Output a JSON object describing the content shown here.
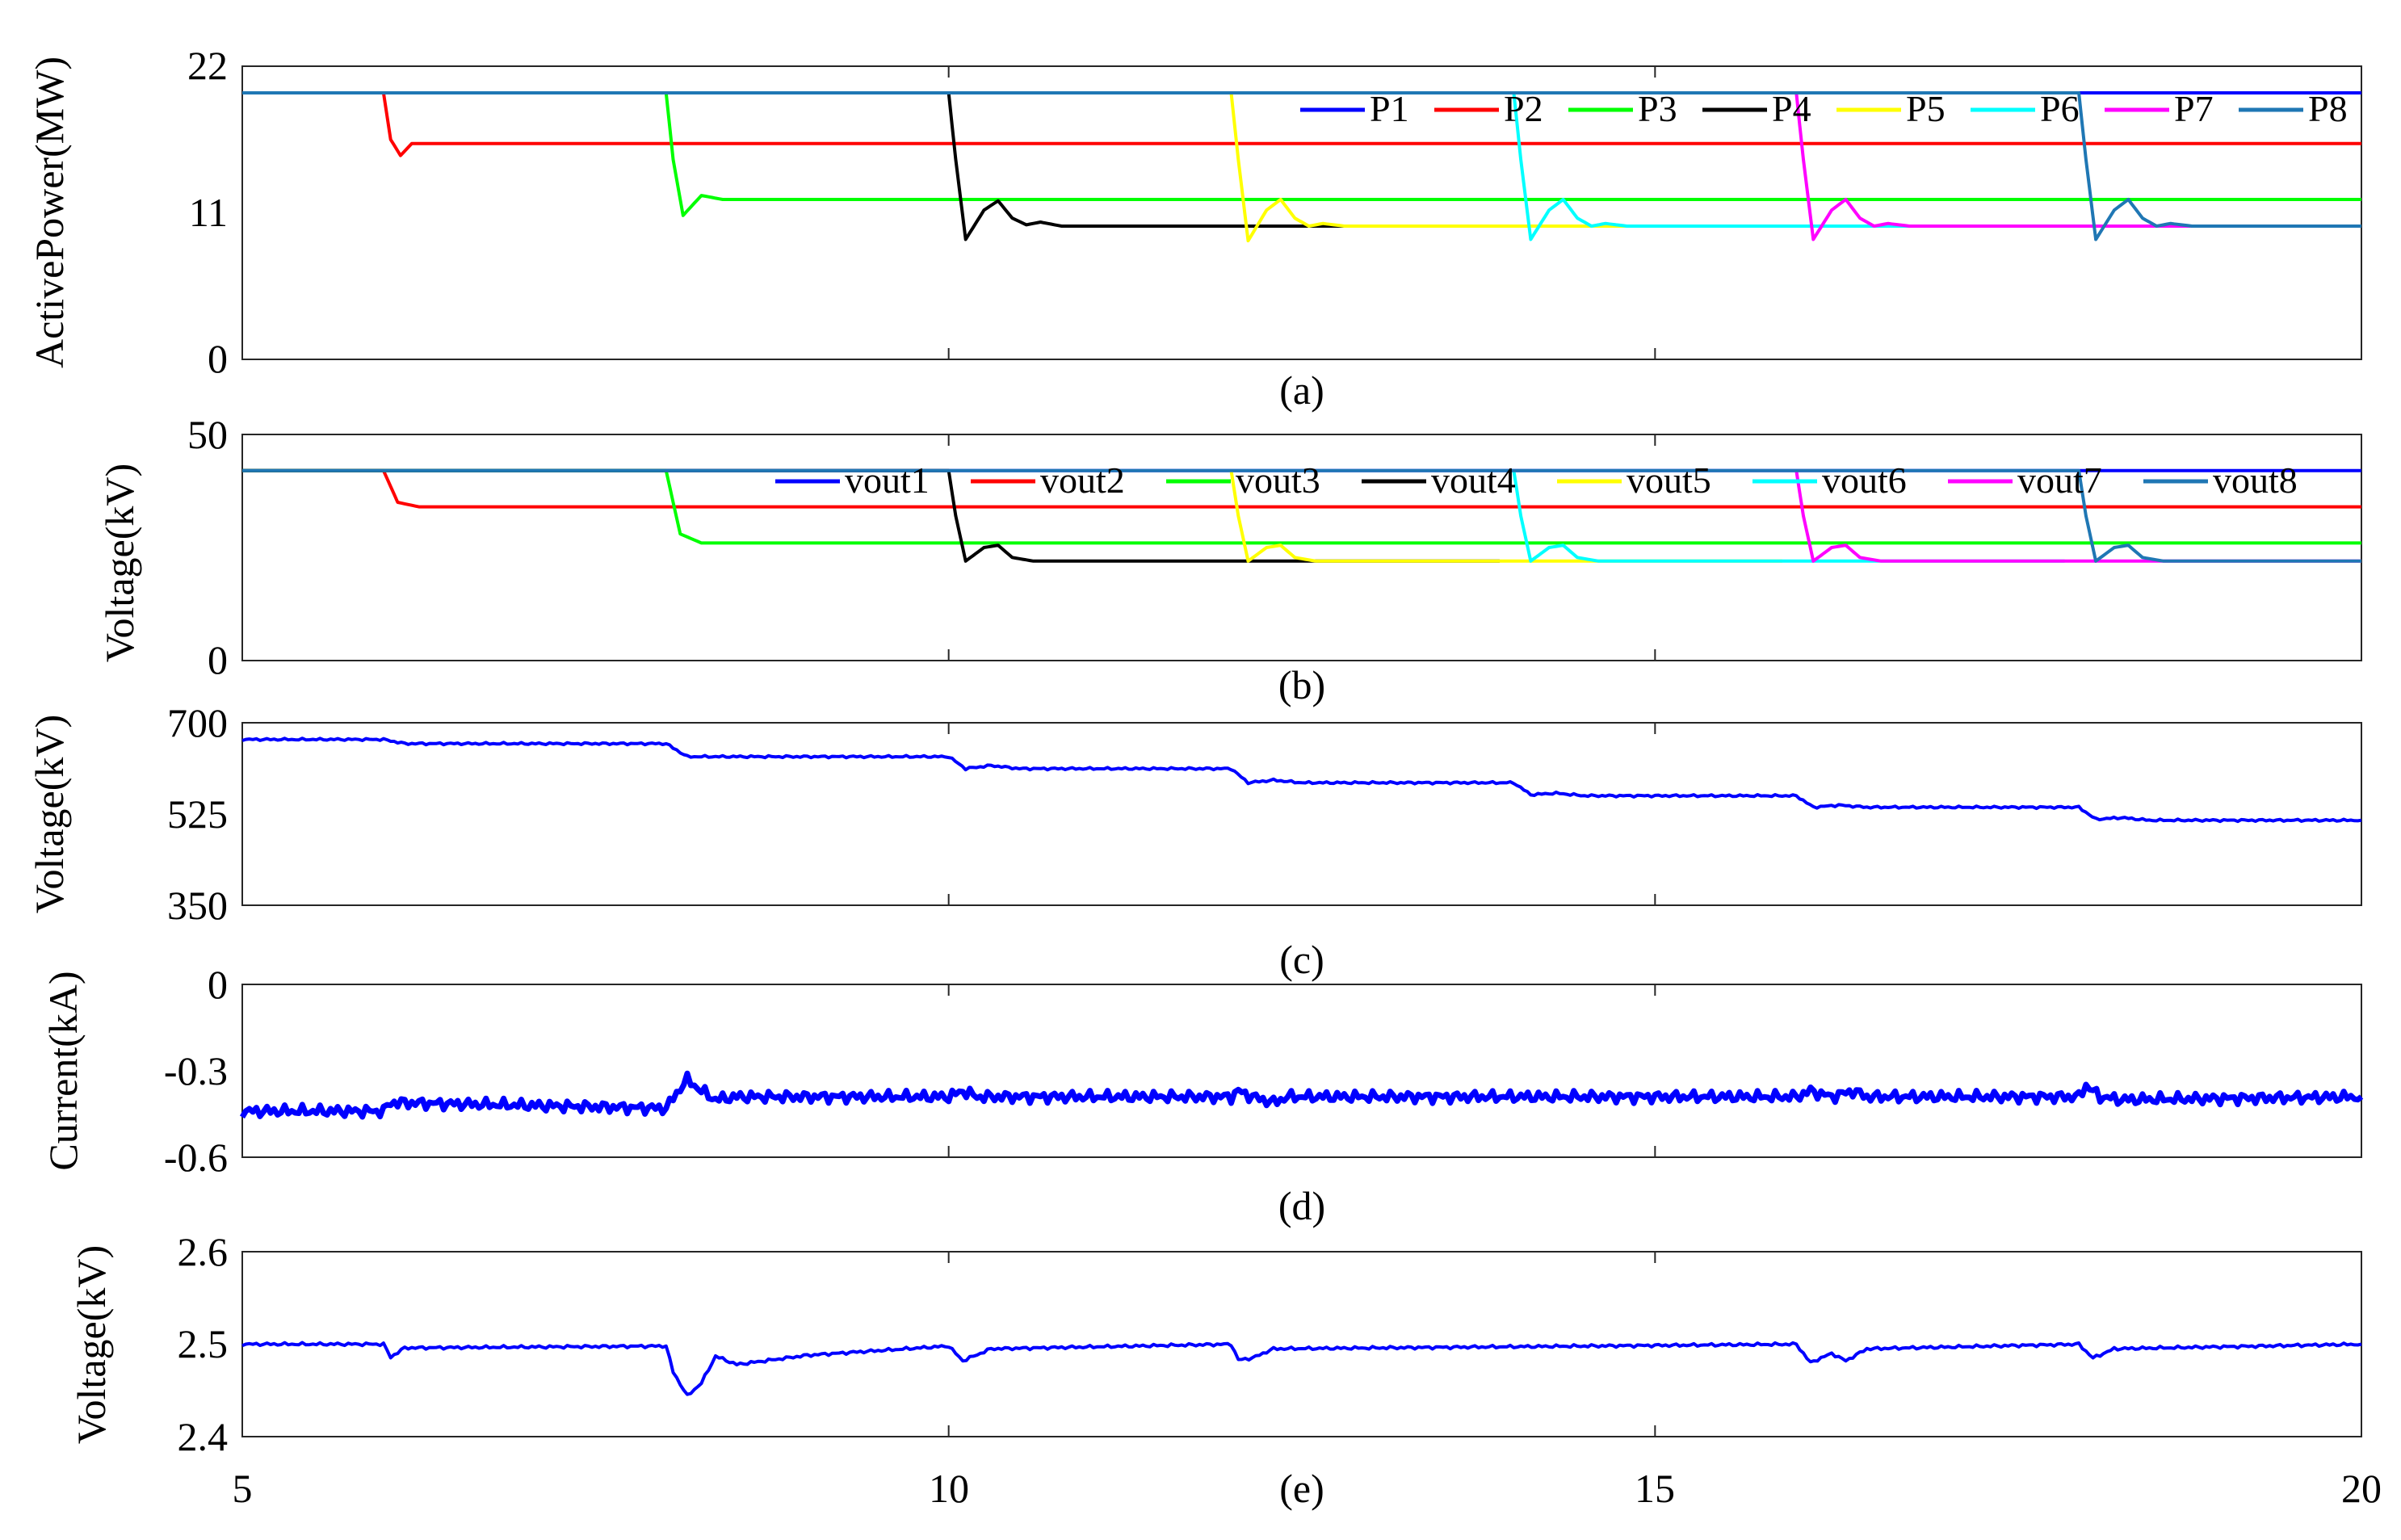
{
  "chart_data": [
    {
      "type": "line",
      "caption": "(a)",
      "ylabel": "ActivePower(MW)",
      "xlim": [
        5,
        20
      ],
      "ylim": [
        0,
        22
      ],
      "yticks": [
        "0",
        "11",
        "22"
      ],
      "xticks": [
        "5",
        "10",
        "15",
        "20"
      ],
      "legend": "top-right, single row",
      "series": [
        {
          "name": "P1",
          "color": "#0000ff",
          "values": [
            [
              5,
              20
            ],
            [
              20,
              20
            ]
          ]
        },
        {
          "name": "P2",
          "color": "#ff0000",
          "values": [
            [
              5,
              20
            ],
            [
              6,
              20
            ],
            [
              6.05,
              16.5
            ],
            [
              6.12,
              15.3
            ],
            [
              6.2,
              16.2
            ],
            [
              20,
              16.2
            ]
          ]
        },
        {
          "name": "P3",
          "color": "#00ff00",
          "values": [
            [
              5,
              20
            ],
            [
              8,
              20
            ],
            [
              8.05,
              15
            ],
            [
              8.12,
              10.8
            ],
            [
              8.25,
              12.3
            ],
            [
              8.4,
              12
            ],
            [
              20,
              12
            ]
          ]
        },
        {
          "name": "P4",
          "color": "#000000",
          "values": [
            [
              5,
              20
            ],
            [
              10,
              20
            ],
            [
              10.05,
              15
            ],
            [
              10.12,
              9
            ],
            [
              10.25,
              11.2
            ],
            [
              10.35,
              11.9
            ],
            [
              10.45,
              10.6
            ],
            [
              10.55,
              10.1
            ],
            [
              10.65,
              10.3
            ],
            [
              10.8,
              10
            ],
            [
              13.9,
              10
            ]
          ]
        },
        {
          "name": "P5",
          "color": "#ffff00",
          "values": [
            [
              12,
              20
            ],
            [
              12.05,
              15
            ],
            [
              12.12,
              8.9
            ],
            [
              12.25,
              11.2
            ],
            [
              12.35,
              12
            ],
            [
              12.45,
              10.6
            ],
            [
              12.55,
              10
            ],
            [
              12.65,
              10.2
            ],
            [
              12.8,
              10
            ],
            [
              15.9,
              10
            ]
          ]
        },
        {
          "name": "P6",
          "color": "#00ffff",
          "values": [
            [
              14,
              20
            ],
            [
              14.05,
              15
            ],
            [
              14.12,
              9
            ],
            [
              14.25,
              11.2
            ],
            [
              14.35,
              12
            ],
            [
              14.45,
              10.6
            ],
            [
              14.55,
              10
            ],
            [
              14.65,
              10.2
            ],
            [
              14.8,
              10
            ],
            [
              17.9,
              10
            ]
          ]
        },
        {
          "name": "P7",
          "color": "#ff00ff",
          "values": [
            [
              16,
              20
            ],
            [
              16.05,
              15
            ],
            [
              16.12,
              9
            ],
            [
              16.25,
              11.2
            ],
            [
              16.35,
              12
            ],
            [
              16.45,
              10.6
            ],
            [
              16.55,
              10
            ],
            [
              16.65,
              10.2
            ],
            [
              16.8,
              10
            ],
            [
              20,
              10
            ]
          ]
        },
        {
          "name": "P8",
          "color": "#1f77b4",
          "values": [
            [
              5,
              20
            ],
            [
              18,
              20
            ],
            [
              18.05,
              15
            ],
            [
              18.12,
              9
            ],
            [
              18.25,
              11.2
            ],
            [
              18.35,
              12
            ],
            [
              18.45,
              10.6
            ],
            [
              18.55,
              10
            ],
            [
              18.65,
              10.2
            ],
            [
              18.8,
              10
            ],
            [
              20,
              10
            ]
          ]
        }
      ]
    },
    {
      "type": "line",
      "caption": "(b)",
      "ylabel": "Voltage(kV)",
      "xlim": [
        5,
        20
      ],
      "ylim": [
        0,
        50
      ],
      "yticks": [
        "0",
        "50"
      ],
      "xticks": [
        "5",
        "10",
        "15",
        "20"
      ],
      "legend": "top-right, single row",
      "series": [
        {
          "name": "vout1",
          "color": "#0000ff",
          "values": [
            [
              5,
              42
            ],
            [
              20,
              42
            ]
          ]
        },
        {
          "name": "vout2",
          "color": "#ff0000",
          "values": [
            [
              5,
              42
            ],
            [
              6,
              42
            ],
            [
              6.1,
              35
            ],
            [
              6.25,
              34
            ],
            [
              20,
              34
            ]
          ]
        },
        {
          "name": "vout3",
          "color": "#00ff00",
          "values": [
            [
              5,
              42
            ],
            [
              8,
              42
            ],
            [
              8.1,
              28
            ],
            [
              8.25,
              26
            ],
            [
              20,
              26
            ]
          ]
        },
        {
          "name": "vout4",
          "color": "#000000",
          "values": [
            [
              5,
              42
            ],
            [
              10,
              42
            ],
            [
              10.05,
              32
            ],
            [
              10.12,
              22
            ],
            [
              10.25,
              25
            ],
            [
              10.35,
              25.5
            ],
            [
              10.45,
              22.8
            ],
            [
              10.6,
              22
            ],
            [
              13.9,
              22
            ]
          ]
        },
        {
          "name": "vout5",
          "color": "#ffff00",
          "values": [
            [
              12,
              42
            ],
            [
              12.05,
              32
            ],
            [
              12.12,
              22
            ],
            [
              12.25,
              25
            ],
            [
              12.35,
              25.5
            ],
            [
              12.45,
              22.8
            ],
            [
              12.6,
              22
            ],
            [
              15.9,
              22
            ]
          ]
        },
        {
          "name": "vout6",
          "color": "#00ffff",
          "values": [
            [
              14,
              42
            ],
            [
              14.05,
              32
            ],
            [
              14.12,
              22
            ],
            [
              14.25,
              25
            ],
            [
              14.35,
              25.5
            ],
            [
              14.45,
              22.8
            ],
            [
              14.6,
              22
            ],
            [
              17.9,
              22
            ]
          ]
        },
        {
          "name": "vout7",
          "color": "#ff00ff",
          "values": [
            [
              16,
              42
            ],
            [
              16.05,
              32
            ],
            [
              16.12,
              22
            ],
            [
              16.25,
              25
            ],
            [
              16.35,
              25.5
            ],
            [
              16.45,
              22.8
            ],
            [
              16.6,
              22
            ],
            [
              20,
              22
            ]
          ]
        },
        {
          "name": "vout8",
          "color": "#1f77b4",
          "values": [
            [
              5,
              42
            ],
            [
              18,
              42
            ],
            [
              18.05,
              32
            ],
            [
              18.12,
              22
            ],
            [
              18.25,
              25
            ],
            [
              18.35,
              25.5
            ],
            [
              18.45,
              22.8
            ],
            [
              18.6,
              22
            ],
            [
              20,
              22
            ]
          ]
        }
      ]
    },
    {
      "type": "line",
      "caption": "(c)",
      "ylabel": "Voltage(kV)",
      "xlim": [
        5,
        20
      ],
      "ylim": [
        350,
        700
      ],
      "yticks": [
        "350",
        "525",
        "700"
      ],
      "xticks": [
        "5",
        "10",
        "15",
        "20"
      ],
      "series": [
        {
          "color": "#0000ff",
          "values": [
            [
              5,
              668
            ],
            [
              6,
              668
            ],
            [
              6.15,
              660
            ],
            [
              8,
              660
            ],
            [
              8.15,
              635
            ],
            [
              10,
              635
            ],
            [
              10.12,
              612
            ],
            [
              10.3,
              618
            ],
            [
              10.5,
              612
            ],
            [
              12,
              612
            ],
            [
              12.12,
              585
            ],
            [
              12.3,
              590
            ],
            [
              12.5,
              585
            ],
            [
              14,
              585
            ],
            [
              14.12,
              562
            ],
            [
              14.3,
              565
            ],
            [
              14.5,
              560
            ],
            [
              16,
              560
            ],
            [
              16.12,
              538
            ],
            [
              16.3,
              542
            ],
            [
              16.5,
              538
            ],
            [
              18,
              538
            ],
            [
              18.12,
              515
            ],
            [
              18.3,
              518
            ],
            [
              18.5,
              513
            ],
            [
              20,
              513
            ]
          ]
        }
      ]
    },
    {
      "type": "line",
      "caption": "(d)",
      "ylabel": "Current(kA)",
      "xlim": [
        5,
        20
      ],
      "ylim": [
        -0.6,
        0
      ],
      "yticks": [
        "-0.6",
        "-0.3",
        "0"
      ],
      "xticks": [
        "5",
        "10",
        "15",
        "20"
      ],
      "series": [
        {
          "color": "#0000ff",
          "values": [
            [
              5,
              -0.44
            ],
            [
              6,
              -0.44
            ],
            [
              6.05,
              -0.41
            ],
            [
              8,
              -0.43
            ],
            [
              8.1,
              -0.36
            ],
            [
              8.15,
              -0.33
            ],
            [
              8.25,
              -0.37
            ],
            [
              8.35,
              -0.4
            ],
            [
              8.5,
              -0.39
            ],
            [
              10,
              -0.39
            ],
            [
              10.1,
              -0.37
            ],
            [
              10.2,
              -0.39
            ],
            [
              12,
              -0.39
            ],
            [
              12.05,
              -0.37
            ],
            [
              12.15,
              -0.39
            ],
            [
              12.3,
              -0.41
            ],
            [
              12.4,
              -0.39
            ],
            [
              16,
              -0.39
            ],
            [
              16.1,
              -0.37
            ],
            [
              16.25,
              -0.39
            ],
            [
              16.4,
              -0.37
            ],
            [
              16.5,
              -0.39
            ],
            [
              18,
              -0.39
            ],
            [
              18.05,
              -0.35
            ],
            [
              18.15,
              -0.39
            ],
            [
              18.3,
              -0.4
            ],
            [
              20,
              -0.39
            ]
          ]
        }
      ]
    },
    {
      "type": "line",
      "caption": "(e)",
      "ylabel": "Voltage(kV)",
      "xlim": [
        5,
        20
      ],
      "ylim": [
        2.4,
        2.6
      ],
      "yticks": [
        "2.4",
        "2.5",
        "2.6"
      ],
      "xticks": [
        "5",
        "10",
        "15",
        "20"
      ],
      "series": [
        {
          "color": "#0000ff",
          "values": [
            [
              5,
              2.5
            ],
            [
              6,
              2.5
            ],
            [
              6.05,
              2.486
            ],
            [
              6.15,
              2.496
            ],
            [
              8,
              2.498
            ],
            [
              8.05,
              2.47
            ],
            [
              8.15,
              2.444
            ],
            [
              8.25,
              2.458
            ],
            [
              8.35,
              2.487
            ],
            [
              8.5,
              2.478
            ],
            [
              9,
              2.488
            ],
            [
              10,
              2.498
            ],
            [
              10.1,
              2.482
            ],
            [
              10.3,
              2.495
            ],
            [
              12,
              2.5
            ],
            [
              12.05,
              2.483
            ],
            [
              12.15,
              2.485
            ],
            [
              12.3,
              2.495
            ],
            [
              16,
              2.5
            ],
            [
              16.1,
              2.48
            ],
            [
              16.25,
              2.49
            ],
            [
              16.35,
              2.482
            ],
            [
              16.5,
              2.495
            ],
            [
              18,
              2.5
            ],
            [
              18.1,
              2.485
            ],
            [
              18.25,
              2.495
            ],
            [
              20,
              2.5
            ]
          ]
        }
      ]
    }
  ]
}
